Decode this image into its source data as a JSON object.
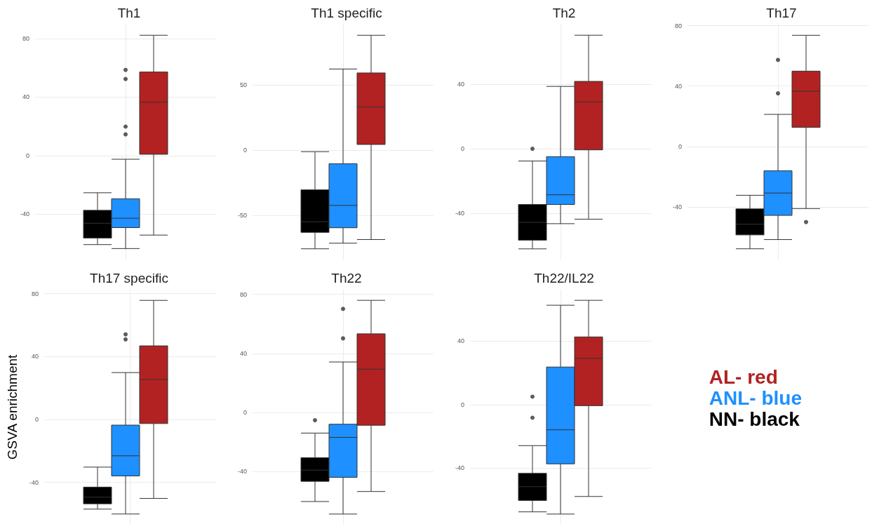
{
  "chart_data": [
    {
      "type": "box",
      "title": "Th1",
      "categories": [
        null
      ],
      "ylim": [
        -71,
        89.5
      ],
      "yticks": [
        -40,
        0,
        40,
        80
      ],
      "grid": true,
      "tick_labels": "y",
      "legend": false,
      "series": [
        {
          "color": "#000000",
          "boxes": [
            {
              "low": -60.8,
              "q1": -56.3,
              "median": -46.2,
              "q3": -37.4,
              "high": -25.4
            }
          ]
        },
        {
          "color": "#1e90ff",
          "boxes": [
            {
              "low": -63.5,
              "q1": -49.2,
              "median": -42.8,
              "q3": -29.5,
              "high": -2.5,
              "outliers": [
                58.5,
                52.3,
                19.8,
                14.5
              ]
            }
          ]
        },
        {
          "color": "#b22222",
          "boxes": [
            {
              "low": -54.3,
              "q1": 0.9,
              "median": 36.5,
              "q3": 57.1,
              "high": 82.2
            }
          ]
        }
      ]
    },
    {
      "type": "box",
      "title": "Th1 specific",
      "categories": [
        null
      ],
      "ylim": [
        -83.7,
        96
      ],
      "yticks": [
        -50,
        0,
        50
      ],
      "grid": true,
      "tick_labels": "y",
      "legend": false,
      "series": [
        {
          "color": "#000000",
          "boxes": [
            {
              "low": -75.5,
              "q1": -62.9,
              "median": -54.8,
              "q3": -30.4,
              "high": -1.2
            }
          ]
        },
        {
          "color": "#1e90ff",
          "boxes": [
            {
              "low": -71.2,
              "q1": -59.4,
              "median": -42.3,
              "q3": -10.4,
              "high": 62
            }
          ]
        },
        {
          "color": "#b22222",
          "boxes": [
            {
              "low": -68.4,
              "q1": 4.3,
              "median": 33,
              "q3": 59,
              "high": 87.8
            }
          ]
        }
      ]
    },
    {
      "type": "box",
      "title": "Th2",
      "categories": [
        null
      ],
      "ylim": [
        -68.6,
        76.9
      ],
      "yticks": [
        -40,
        0,
        40
      ],
      "grid": true,
      "tick_labels": "y",
      "legend": false,
      "series": [
        {
          "color": "#000000",
          "boxes": [
            {
              "low": -62,
              "q1": -56.6,
              "median": -45.6,
              "q3": -34.5,
              "high": -7.6,
              "outliers": [
                0
              ]
            }
          ]
        },
        {
          "color": "#1e90ff",
          "boxes": [
            {
              "low": -46.4,
              "q1": -34.5,
              "median": -28.5,
              "q3": -4.9,
              "high": 38.6
            }
          ]
        },
        {
          "color": "#b22222",
          "boxes": [
            {
              "low": -43.6,
              "q1": -0.7,
              "median": 29,
              "q3": 41.7,
              "high": 70.3
            }
          ]
        }
      ]
    },
    {
      "type": "box",
      "title": "Th17",
      "categories": [
        null
      ],
      "ylim": [
        -74.7,
        80.7
      ],
      "yticks": [
        -40,
        0,
        40,
        80
      ],
      "grid": true,
      "tick_labels": "y",
      "legend": false,
      "series": [
        {
          "color": "#000000",
          "boxes": [
            {
              "low": -67.6,
              "q1": -58.4,
              "median": -51.3,
              "q3": -41.2,
              "high": -32.2
            }
          ]
        },
        {
          "color": "#1e90ff",
          "boxes": [
            {
              "low": -61.5,
              "q1": -45.5,
              "median": -30.7,
              "q3": -16,
              "high": 21.3,
              "outliers": [
                57.3,
                35.2
              ]
            }
          ]
        },
        {
          "color": "#b22222",
          "boxes": [
            {
              "low": -41,
              "q1": 12.7,
              "median": 36.6,
              "q3": 49.9,
              "high": 73.6,
              "outliers": [
                -49.9
              ]
            }
          ]
        }
      ]
    },
    {
      "type": "box",
      "title": "Th17 specific",
      "ylabel": "GSVA enrichment",
      "categories": [
        null
      ],
      "ylim": [
        -66.9,
        82.5
      ],
      "yticks": [
        -40,
        0,
        40,
        80
      ],
      "grid": true,
      "tick_labels": "y",
      "legend": false,
      "series": [
        {
          "color": "#000000",
          "boxes": [
            {
              "low": -57,
              "q1": -53.6,
              "median": -49.4,
              "q3": -43,
              "high": -30.3
            }
          ]
        },
        {
          "color": "#1e90ff",
          "boxes": [
            {
              "low": -60.1,
              "q1": -35.9,
              "median": -23.1,
              "q3": -3.6,
              "high": 29.8,
              "outliers": [
                54.1,
                50.9
              ]
            }
          ]
        },
        {
          "color": "#b22222",
          "boxes": [
            {
              "low": -50.2,
              "q1": -2.6,
              "median": 25.4,
              "q3": 46.8,
              "high": 75.7
            }
          ]
        }
      ]
    },
    {
      "type": "box",
      "title": "Th22",
      "categories": [
        null
      ],
      "ylim": [
        -76.1,
        83.2
      ],
      "yticks": [
        -40,
        0,
        40,
        80
      ],
      "grid": true,
      "tick_labels": "y",
      "legend": false,
      "series": [
        {
          "color": "#000000",
          "boxes": [
            {
              "low": -60.4,
              "q1": -46.7,
              "median": -39.1,
              "q3": -30.7,
              "high": -14,
              "outliers": [
                -5.3
              ]
            }
          ]
        },
        {
          "color": "#1e90ff",
          "boxes": [
            {
              "low": -68.9,
              "q1": -44,
              "median": -16.9,
              "q3": -8,
              "high": 34.2,
              "outliers": [
                70.2,
                50.2
              ]
            }
          ]
        },
        {
          "color": "#b22222",
          "boxes": [
            {
              "low": -53.6,
              "q1": -8.7,
              "median": 29.3,
              "q3": 53.3,
              "high": 76
            }
          ]
        }
      ]
    },
    {
      "type": "box",
      "title": "Th22/IL22",
      "categories": [
        null
      ],
      "ylim": [
        -75.8,
        72.5
      ],
      "yticks": [
        -40,
        0,
        40
      ],
      "grid": true,
      "tick_labels": "y",
      "legend": "right",
      "series": [
        {
          "name": "NN- black",
          "color": "#000000",
          "boxes": [
            {
              "low": -67.7,
              "q1": -60.5,
              "median": -51.8,
              "q3": -43.4,
              "high": -25.9,
              "outliers": [
                5,
                -8.3
              ]
            }
          ]
        },
        {
          "name": "ANL- blue",
          "color": "#1e90ff",
          "boxes": [
            {
              "low": -69.1,
              "q1": -37.4,
              "median": -15.9,
              "q3": 23.7,
              "high": 62.7
            }
          ]
        },
        {
          "name": "AL- red",
          "color": "#b22222",
          "boxes": [
            {
              "low": -58,
              "q1": -0.7,
              "median": 29.2,
              "q3": 42.7,
              "high": 65.8
            }
          ]
        }
      ]
    }
  ]
}
